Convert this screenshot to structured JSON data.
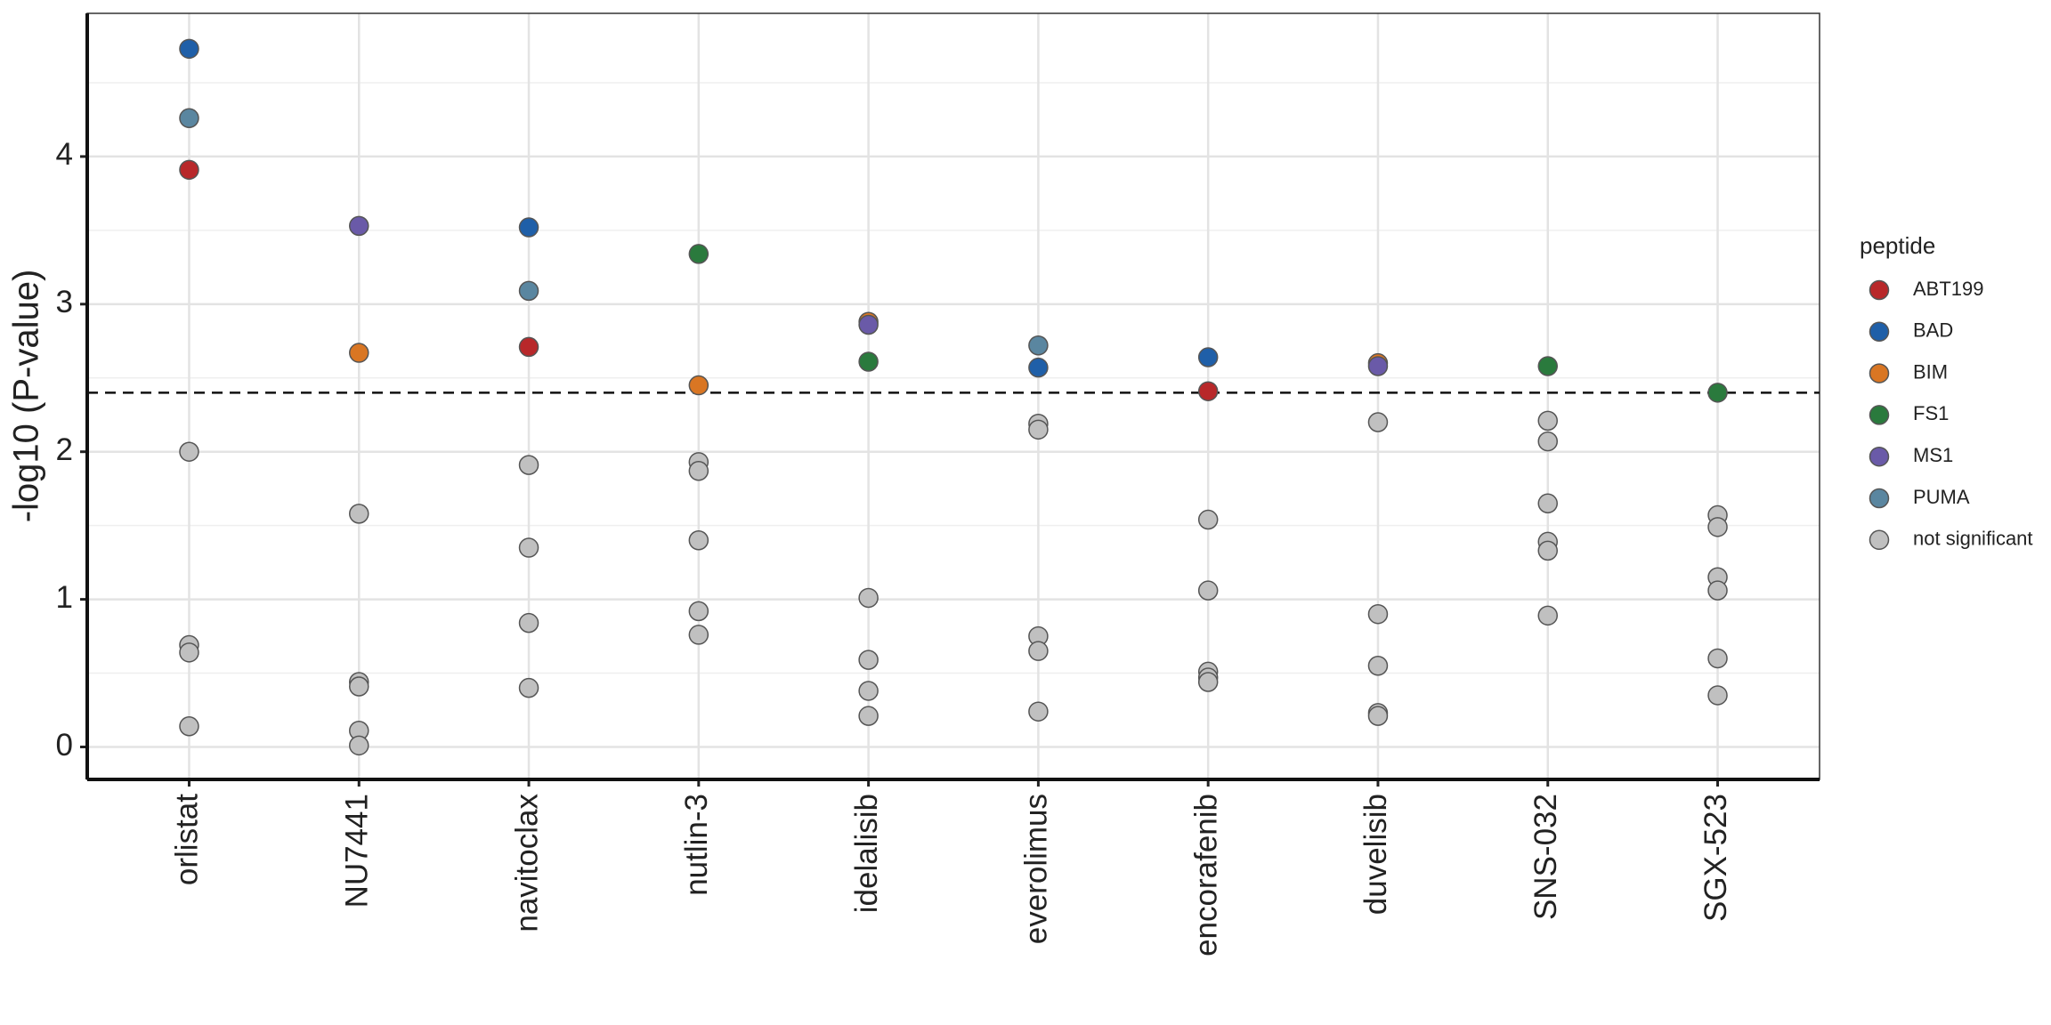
{
  "chart_data": {
    "type": "scatter",
    "y_label": "-log10 (P-value)",
    "categories": [
      "orlistat",
      "NU7441",
      "navitoclax",
      "nutlin-3",
      "idelalisib",
      "everolimus",
      "encorafenib",
      "duvelisib",
      "SNS-032",
      "SGX-523"
    ],
    "ylim": [
      -0.22,
      4.97
    ],
    "yticks": [
      0,
      1,
      2,
      3,
      4
    ],
    "grid": true,
    "hline": 2.4,
    "legend_title": "peptide",
    "legend_position": "right",
    "series": [
      {
        "name": "ABT199",
        "color": "#b8282a",
        "x": [
          "orlistat",
          "navitoclax",
          "encorafenib"
        ],
        "values": [
          3.91,
          2.71,
          2.41
        ]
      },
      {
        "name": "BAD",
        "color": "#1f5fa8",
        "x": [
          "orlistat",
          "navitoclax",
          "everolimus",
          "encorafenib"
        ],
        "values": [
          4.73,
          3.52,
          2.57,
          2.64
        ]
      },
      {
        "name": "BIM",
        "color": "#d97623",
        "x": [
          "NU7441",
          "nutlin-3",
          "idelalisib",
          "duvelisib"
        ],
        "values": [
          2.67,
          2.45,
          2.88,
          2.6
        ]
      },
      {
        "name": "FS1",
        "color": "#2a7a3d",
        "x": [
          "nutlin-3",
          "idelalisib",
          "SNS-032",
          "SGX-523"
        ],
        "values": [
          3.34,
          2.61,
          2.58,
          2.4
        ]
      },
      {
        "name": "MS1",
        "color": "#6a5aa8",
        "x": [
          "NU7441",
          "idelalisib",
          "duvelisib"
        ],
        "values": [
          3.53,
          2.86,
          2.58
        ]
      },
      {
        "name": "PUMA",
        "color": "#5a86a0",
        "x": [
          "orlistat",
          "navitoclax",
          "everolimus"
        ],
        "values": [
          4.26,
          3.09,
          2.72
        ]
      },
      {
        "name": "not significant",
        "color": "#c0c0c0",
        "x": [
          "orlistat",
          "orlistat",
          "orlistat",
          "orlistat",
          "NU7441",
          "NU7441",
          "NU7441",
          "NU7441",
          "NU7441",
          "navitoclax",
          "navitoclax",
          "navitoclax",
          "navitoclax",
          "nutlin-3",
          "nutlin-3",
          "nutlin-3",
          "nutlin-3",
          "nutlin-3",
          "idelalisib",
          "idelalisib",
          "idelalisib",
          "idelalisib",
          "everolimus",
          "everolimus",
          "everolimus",
          "everolimus",
          "everolimus",
          "encorafenib",
          "encorafenib",
          "encorafenib",
          "encorafenib",
          "encorafenib",
          "duvelisib",
          "duvelisib",
          "duvelisib",
          "duvelisib",
          "duvelisib",
          "SNS-032",
          "SNS-032",
          "SNS-032",
          "SNS-032",
          "SNS-032",
          "SNS-032",
          "SGX-523",
          "SGX-523",
          "SGX-523",
          "SGX-523",
          "SGX-523",
          "SGX-523"
        ],
        "values": [
          2.0,
          0.69,
          0.64,
          0.14,
          1.58,
          0.44,
          0.41,
          0.11,
          0.01,
          1.91,
          1.35,
          0.84,
          0.4,
          1.93,
          1.87,
          1.4,
          0.92,
          0.76,
          1.01,
          0.59,
          0.38,
          0.21,
          2.19,
          2.15,
          0.75,
          0.65,
          0.24,
          1.54,
          1.06,
          0.51,
          0.47,
          0.44,
          2.2,
          0.9,
          0.55,
          0.23,
          0.21,
          2.21,
          2.07,
          1.65,
          1.39,
          1.33,
          0.89,
          1.57,
          1.49,
          1.15,
          1.06,
          0.6,
          0.35
        ]
      }
    ]
  }
}
